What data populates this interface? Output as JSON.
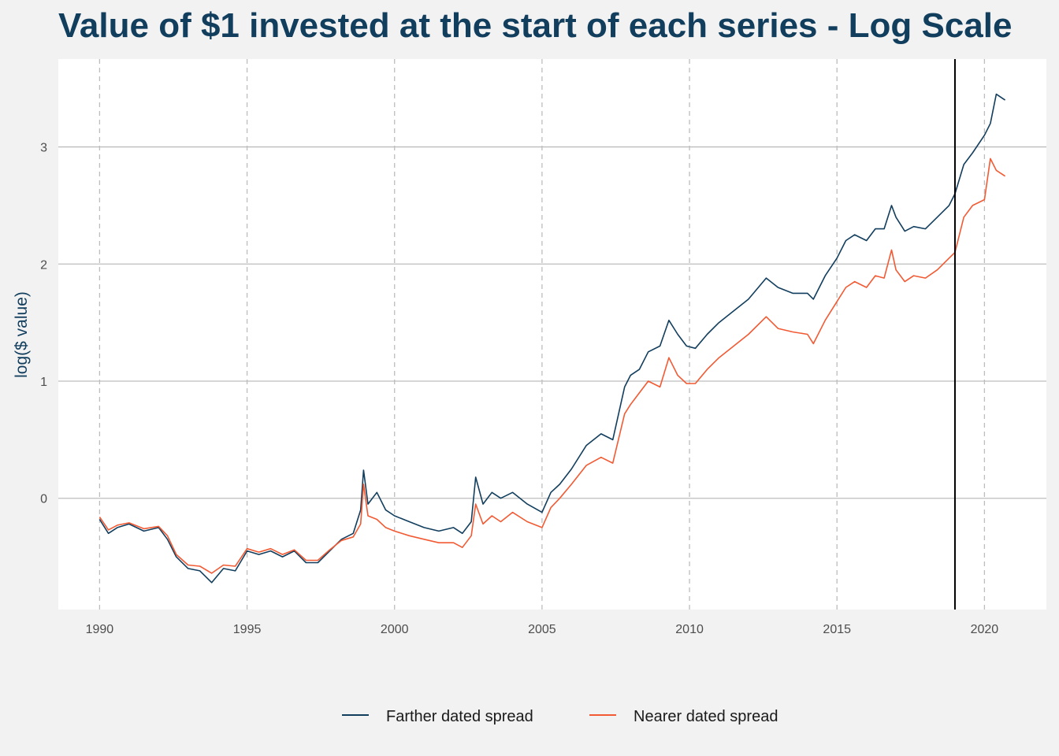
{
  "chart_data": {
    "type": "line",
    "title": "Value of $1 invested at the start of each series - Log Scale",
    "xlabel": "",
    "ylabel": "log($ value)",
    "x_ticks": [
      "1990",
      "1995",
      "2000",
      "2005",
      "2010",
      "2015",
      "2020"
    ],
    "y_ticks": [
      "0",
      "1",
      "2",
      "3"
    ],
    "xlim": [
      1988.6,
      2022.1
    ],
    "ylim": [
      -0.95,
      3.75
    ],
    "grid": {
      "horizontal_major": "solid",
      "vertical_major": "dashed"
    },
    "reference_line": {
      "x": 2019.0
    },
    "legend_position": "bottom",
    "series": [
      {
        "name": "Farther dated spread",
        "color": "#123e5e",
        "x": [
          1990.0,
          1990.3,
          1990.6,
          1991.0,
          1991.5,
          1992.0,
          1992.3,
          1992.6,
          1993.0,
          1993.4,
          1993.8,
          1994.2,
          1994.6,
          1995.0,
          1995.4,
          1995.8,
          1996.2,
          1996.6,
          1997.0,
          1997.4,
          1997.8,
          1998.2,
          1998.6,
          1998.85,
          1998.95,
          1999.1,
          1999.4,
          1999.7,
          2000.0,
          2000.5,
          2001.0,
          2001.5,
          2002.0,
          2002.3,
          2002.6,
          2002.75,
          2003.0,
          2003.3,
          2003.6,
          2004.0,
          2004.5,
          2005.0,
          2005.3,
          2005.6,
          2006.0,
          2006.5,
          2007.0,
          2007.4,
          2007.8,
          2008.0,
          2008.3,
          2008.6,
          2009.0,
          2009.3,
          2009.6,
          2009.9,
          2010.2,
          2010.6,
          2011.0,
          2011.5,
          2012.0,
          2012.6,
          2013.0,
          2013.5,
          2014.0,
          2014.2,
          2014.6,
          2015.0,
          2015.3,
          2015.6,
          2016.0,
          2016.3,
          2016.6,
          2016.85,
          2017.0,
          2017.3,
          2017.6,
          2018.0,
          2018.4,
          2018.8,
          2019.0,
          2019.3,
          2019.6,
          2020.0,
          2020.2,
          2020.4,
          2020.7
        ],
        "values": [
          -0.18,
          -0.3,
          -0.25,
          -0.22,
          -0.28,
          -0.25,
          -0.35,
          -0.5,
          -0.6,
          -0.62,
          -0.72,
          -0.6,
          -0.62,
          -0.45,
          -0.48,
          -0.45,
          -0.5,
          -0.45,
          -0.55,
          -0.55,
          -0.45,
          -0.35,
          -0.3,
          -0.1,
          0.24,
          -0.05,
          0.05,
          -0.1,
          -0.15,
          -0.2,
          -0.25,
          -0.28,
          -0.25,
          -0.3,
          -0.2,
          0.18,
          -0.05,
          0.05,
          0.0,
          0.05,
          -0.05,
          -0.12,
          0.05,
          0.12,
          0.25,
          0.45,
          0.55,
          0.5,
          0.95,
          1.05,
          1.1,
          1.25,
          1.3,
          1.52,
          1.4,
          1.3,
          1.28,
          1.4,
          1.5,
          1.6,
          1.7,
          1.88,
          1.8,
          1.75,
          1.75,
          1.7,
          1.9,
          2.05,
          2.2,
          2.25,
          2.2,
          2.3,
          2.3,
          2.5,
          2.4,
          2.28,
          2.32,
          2.3,
          2.4,
          2.5,
          2.6,
          2.85,
          2.95,
          3.1,
          3.2,
          3.45,
          3.4
        ]
      },
      {
        "name": "Nearer dated spread",
        "color": "#f15a33",
        "x": [
          1990.0,
          1990.3,
          1990.6,
          1991.0,
          1991.5,
          1992.0,
          1992.3,
          1992.6,
          1993.0,
          1993.4,
          1993.8,
          1994.2,
          1994.6,
          1995.0,
          1995.4,
          1995.8,
          1996.2,
          1996.6,
          1997.0,
          1997.4,
          1997.8,
          1998.2,
          1998.6,
          1998.85,
          1998.95,
          1999.1,
          1999.4,
          1999.7,
          2000.0,
          2000.5,
          2001.0,
          2001.5,
          2002.0,
          2002.3,
          2002.6,
          2002.75,
          2003.0,
          2003.3,
          2003.6,
          2004.0,
          2004.5,
          2005.0,
          2005.3,
          2005.6,
          2006.0,
          2006.5,
          2007.0,
          2007.4,
          2007.8,
          2008.0,
          2008.3,
          2008.6,
          2009.0,
          2009.3,
          2009.6,
          2009.9,
          2010.2,
          2010.6,
          2011.0,
          2011.5,
          2012.0,
          2012.6,
          2013.0,
          2013.5,
          2014.0,
          2014.2,
          2014.6,
          2015.0,
          2015.3,
          2015.6,
          2016.0,
          2016.3,
          2016.6,
          2016.85,
          2017.0,
          2017.3,
          2017.6,
          2018.0,
          2018.4,
          2018.8,
          2019.0,
          2019.3,
          2019.6,
          2020.0,
          2020.2,
          2020.4,
          2020.7
        ],
        "values": [
          -0.16,
          -0.27,
          -0.23,
          -0.21,
          -0.26,
          -0.24,
          -0.32,
          -0.48,
          -0.57,
          -0.58,
          -0.64,
          -0.57,
          -0.58,
          -0.43,
          -0.46,
          -0.43,
          -0.48,
          -0.44,
          -0.53,
          -0.53,
          -0.44,
          -0.36,
          -0.33,
          -0.22,
          0.12,
          -0.15,
          -0.18,
          -0.25,
          -0.28,
          -0.32,
          -0.35,
          -0.38,
          -0.38,
          -0.42,
          -0.32,
          -0.05,
          -0.22,
          -0.15,
          -0.2,
          -0.12,
          -0.2,
          -0.25,
          -0.08,
          0.0,
          0.12,
          0.28,
          0.35,
          0.3,
          0.72,
          0.8,
          0.9,
          1.0,
          0.95,
          1.2,
          1.05,
          0.98,
          0.98,
          1.1,
          1.2,
          1.3,
          1.4,
          1.55,
          1.45,
          1.42,
          1.4,
          1.32,
          1.52,
          1.68,
          1.8,
          1.85,
          1.8,
          1.9,
          1.88,
          2.12,
          1.95,
          1.85,
          1.9,
          1.88,
          1.95,
          2.05,
          2.1,
          2.4,
          2.5,
          2.55,
          2.9,
          2.8,
          2.75
        ]
      }
    ]
  }
}
